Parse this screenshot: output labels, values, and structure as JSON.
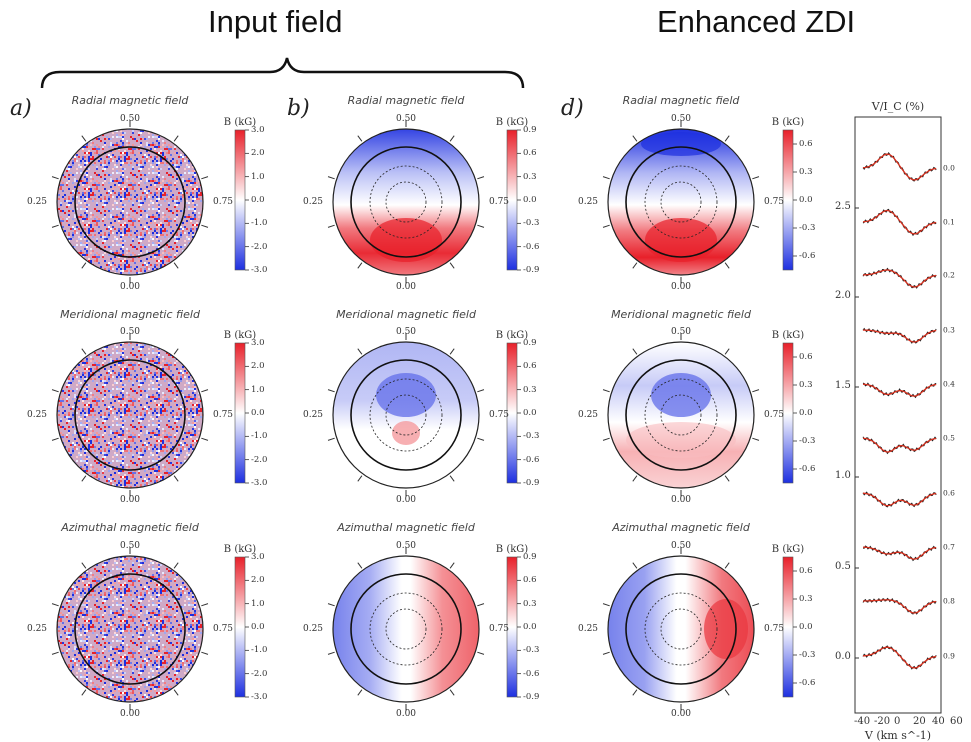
{
  "headers": {
    "input": "Input field",
    "enhanced": "Enhanced ZDI"
  },
  "panel_labels": {
    "a": "a)",
    "b": "b)",
    "d": "d)"
  },
  "row_titles": [
    "Radial magnetic field",
    "Meridional magnetic field",
    "Azimuthal magnetic field"
  ],
  "phase_labels": {
    "top": "0.50",
    "left": "0.25",
    "right": "0.75",
    "bottom": "0.00"
  },
  "colorbar_title": "B (kG)",
  "colorbars": {
    "a": [
      "3.0",
      "2.0",
      "1.0",
      "0.0",
      "-1.0",
      "-2.0",
      "-3.0"
    ],
    "b": [
      "0.9",
      "0.6",
      "0.3",
      "0.0",
      "-0.3",
      "-0.6",
      "-0.9"
    ],
    "d": [
      "0.6",
      "0.3",
      "0.0",
      "-0.3",
      "-0.6"
    ]
  },
  "colors": {
    "positive": "#e8202a",
    "negative": "#1d2fe0",
    "zero": "#ffffff",
    "noise_bg": "#cfa9c6",
    "model": "#d7311f"
  },
  "spectra": {
    "title": "V/I_C (%)",
    "xlabel": "V (km s^-1)",
    "yticks": [
      "2.5",
      "2.0",
      "1.5",
      "1.0",
      "0.5",
      "0.0"
    ],
    "xticks": [
      "-40",
      "-20",
      "0",
      "20",
      "40",
      "60"
    ],
    "phases": [
      "0.0",
      "0.1",
      "0.2",
      "0.3",
      "0.4",
      "0.5",
      "0.6",
      "0.7",
      "0.8",
      "0.9"
    ]
  }
}
